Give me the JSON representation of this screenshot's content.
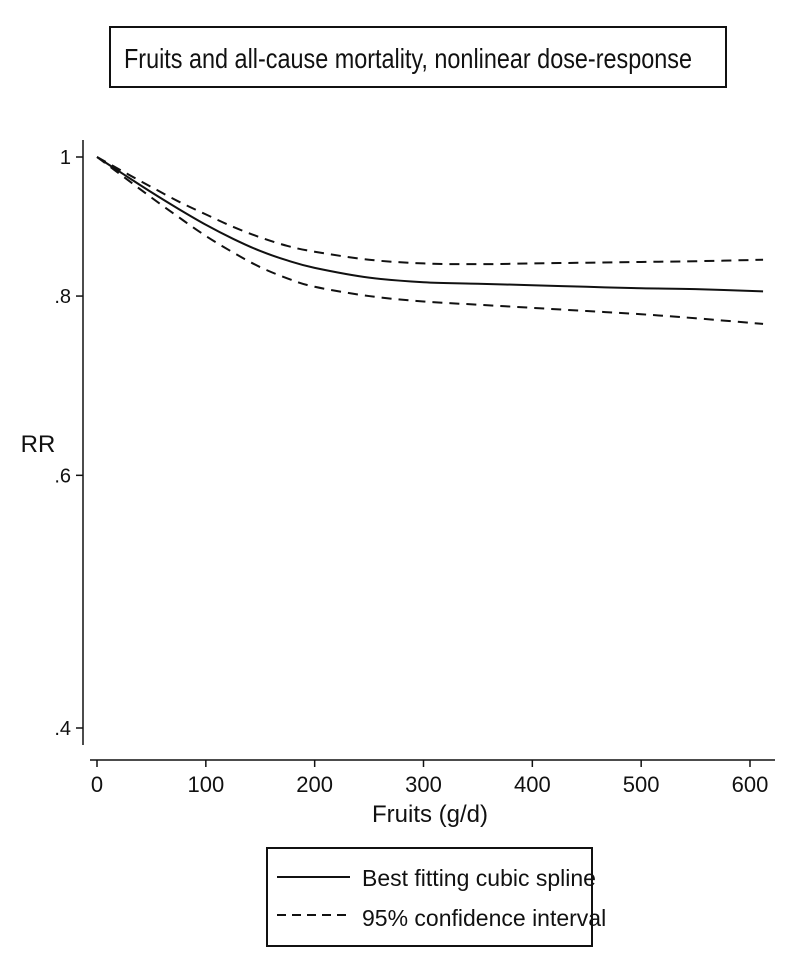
{
  "chart_data": {
    "type": "line",
    "title": "Fruits and all-cause mortality, nonlinear dose-response",
    "xlabel": "Fruits (g/d)",
    "ylabel": "RR",
    "xlim": [
      0,
      620
    ],
    "ylim": [
      0.4,
      1.0
    ],
    "y_scale": "log",
    "x_ticks": [
      0,
      100,
      200,
      300,
      400,
      500,
      600
    ],
    "x_tick_labels": [
      "0",
      "100",
      "200",
      "300",
      "400",
      "500",
      "600"
    ],
    "y_ticks": [
      0.4,
      0.6,
      0.8,
      1.0
    ],
    "y_tick_labels": [
      ".4",
      ".6",
      ".8",
      "1"
    ],
    "grid": false,
    "legend_position": "bottom",
    "series": [
      {
        "name": "Best fitting cubic spline",
        "style": "solid",
        "x": [
          0,
          25,
          50,
          75,
          100,
          125,
          150,
          175,
          200,
          250,
          300,
          350,
          400,
          450,
          500,
          550,
          612
        ],
        "y": [
          1.0,
          0.972,
          0.945,
          0.92,
          0.897,
          0.877,
          0.86,
          0.847,
          0.837,
          0.824,
          0.818,
          0.816,
          0.814,
          0.812,
          0.81,
          0.809,
          0.806
        ]
      },
      {
        "name": "95% confidence interval",
        "style": "dashed",
        "x": [
          0,
          25,
          50,
          75,
          100,
          125,
          150,
          175,
          200,
          250,
          300,
          350,
          400,
          450,
          500,
          550,
          612
        ],
        "y": [
          1.0,
          0.976,
          0.953,
          0.931,
          0.912,
          0.894,
          0.879,
          0.867,
          0.859,
          0.848,
          0.843,
          0.842,
          0.843,
          0.844,
          0.845,
          0.846,
          0.848
        ]
      },
      {
        "name": "",
        "style": "dashed",
        "x": [
          0,
          25,
          50,
          75,
          100,
          125,
          150,
          175,
          200,
          250,
          300,
          350,
          400,
          450,
          500,
          550,
          612
        ],
        "y": [
          1.0,
          0.968,
          0.937,
          0.908,
          0.881,
          0.858,
          0.838,
          0.823,
          0.812,
          0.8,
          0.793,
          0.789,
          0.785,
          0.781,
          0.777,
          0.772,
          0.765
        ]
      }
    ]
  },
  "legend": [
    {
      "label": "Best fitting cubic spline",
      "style": "solid"
    },
    {
      "label": "95% confidence interval",
      "style": "dashed"
    }
  ]
}
